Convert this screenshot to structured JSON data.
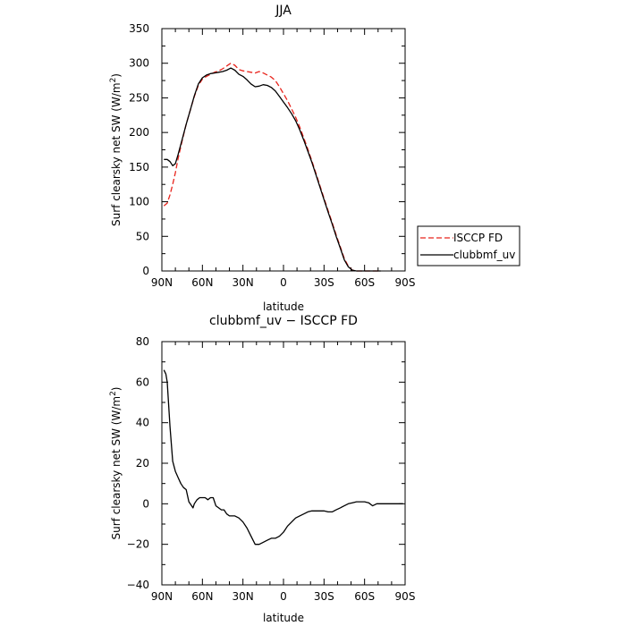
{
  "chart_data": [
    {
      "type": "line",
      "title": "JJA",
      "xlabel": "latitude",
      "ylabel": "Surf clearsky net SW (W/m2)",
      "ylabel_main": "Surf clearsky net SW (W/m",
      "ylabel_sup": "2",
      "ylabel_end": ")",
      "xlim": [
        90,
        -90
      ],
      "ylim": [
        0,
        350
      ],
      "x_ticks": [
        90,
        60,
        30,
        0,
        -30,
        -60,
        -90
      ],
      "x_tick_labels": [
        "90N",
        "60N",
        "30N",
        "0",
        "30S",
        "60S",
        "90S"
      ],
      "y_ticks": [
        0,
        50,
        100,
        150,
        200,
        250,
        300,
        350
      ],
      "y_tick_labels": [
        "0",
        "50",
        "100",
        "150",
        "200",
        "250",
        "300",
        "350"
      ],
      "legend_position": "outside-right",
      "series": [
        {
          "name": "ISCCP FD",
          "color": "#e8241c",
          "dash": "dashed",
          "x": [
            88.5,
            86,
            84,
            82,
            80,
            78,
            75,
            72,
            69,
            66,
            63,
            60,
            57,
            54,
            51,
            48,
            45,
            42,
            39,
            36,
            33,
            30,
            27,
            24,
            21,
            18,
            15,
            12,
            9,
            6,
            3,
            0,
            -3,
            -6,
            -9,
            -12,
            -15,
            -18,
            -21,
            -24,
            -27,
            -30,
            -33,
            -36,
            -39,
            -42,
            -45,
            -48,
            -51,
            -54,
            -57,
            -60,
            -63,
            -66,
            -69,
            -72
          ],
          "values": [
            94,
            98,
            110,
            125,
            142,
            162,
            188,
            212,
            232,
            252,
            268,
            277,
            281,
            284,
            287,
            289,
            292,
            296,
            300,
            297,
            291,
            289,
            288,
            287,
            286,
            288,
            286,
            283,
            280,
            275,
            266,
            256,
            246,
            234,
            222,
            208,
            192,
            176,
            159,
            141,
            123,
            105,
            87,
            70,
            52,
            35,
            18,
            7,
            1,
            0,
            0,
            0,
            0,
            0,
            0,
            0
          ]
        },
        {
          "name": "clubbmf_uv",
          "color": "#000000",
          "dash": "solid",
          "x": [
            88.5,
            86,
            84,
            82,
            80,
            78,
            75,
            72,
            69,
            66,
            63,
            60,
            57,
            54,
            51,
            48,
            45,
            42,
            39,
            36,
            33,
            30,
            27,
            24,
            21,
            18,
            15,
            12,
            9,
            6,
            3,
            0,
            -3,
            -6,
            -9,
            -12,
            -15,
            -18,
            -21,
            -24,
            -27,
            -30,
            -33,
            -36,
            -39,
            -42,
            -45,
            -48,
            -51,
            -54,
            -57,
            -60,
            -63,
            -66,
            -69,
            -72
          ],
          "values": [
            161,
            161,
            158,
            152,
            155,
            168,
            190,
            212,
            232,
            253,
            270,
            279,
            283,
            285,
            286,
            287,
            288,
            290,
            293,
            290,
            284,
            281,
            276,
            270,
            266,
            267,
            269,
            268,
            265,
            260,
            252,
            244,
            236,
            227,
            217,
            204,
            189,
            173,
            157,
            139,
            121,
            103,
            85,
            68,
            50,
            33,
            16,
            6,
            1,
            0,
            0,
            0,
            0,
            0,
            0,
            0
          ]
        }
      ]
    },
    {
      "type": "line",
      "title": "clubbmf_uv − ISCCP FD",
      "xlabel": "latitude",
      "ylabel": "Surf clearsky net SW (W/m2)",
      "ylabel_main": "Surf clearsky net SW (W/m",
      "ylabel_sup": "2",
      "ylabel_end": ")",
      "xlim": [
        90,
        -90
      ],
      "ylim": [
        -40,
        80
      ],
      "x_ticks": [
        90,
        60,
        30,
        0,
        -30,
        -60,
        -90
      ],
      "x_tick_labels": [
        "90N",
        "60N",
        "30N",
        "0",
        "30S",
        "60S",
        "90S"
      ],
      "y_ticks": [
        -40,
        -20,
        0,
        20,
        40,
        60,
        80
      ],
      "y_tick_labels": [
        "−40",
        "−20",
        "0",
        "20",
        "40",
        "60",
        "80"
      ],
      "series": [
        {
          "name": "",
          "color": "#000000",
          "dash": "solid",
          "x": [
            88.5,
            87,
            86,
            84,
            82,
            80,
            78,
            76,
            74,
            72,
            70,
            69,
            67,
            66,
            64,
            62,
            60,
            58,
            56,
            54,
            52,
            50,
            48,
            46,
            44,
            42,
            40,
            36,
            33,
            30,
            27,
            24,
            21,
            18,
            15,
            12,
            9,
            6,
            3,
            0,
            -3,
            -6,
            -9,
            -12,
            -15,
            -18,
            -21,
            -24,
            -27,
            -30,
            -33,
            -36,
            -39,
            -42,
            -45,
            -48,
            -51,
            -54,
            -57,
            -60,
            -63,
            -66,
            -69,
            -72,
            -75,
            -78,
            -81,
            -84,
            -87,
            -88.5
          ],
          "values": [
            66,
            64,
            60,
            38,
            21,
            16,
            13,
            10,
            8,
            7,
            1,
            0,
            -2,
            0,
            2,
            3,
            3,
            3,
            2,
            3,
            3,
            -1,
            -2,
            -3,
            -3,
            -5,
            -6,
            -6,
            -7,
            -9,
            -12,
            -16,
            -20,
            -20,
            -19,
            -18,
            -17,
            -17,
            -16,
            -14,
            -11,
            -9,
            -7,
            -6,
            -5,
            -4,
            -3.5,
            -3.5,
            -3.5,
            -3.5,
            -4,
            -4,
            -3,
            -2,
            -1,
            0,
            0.5,
            1,
            1,
            1,
            0.5,
            -1,
            0,
            0,
            0,
            0,
            0,
            0,
            0,
            0
          ]
        }
      ]
    }
  ]
}
